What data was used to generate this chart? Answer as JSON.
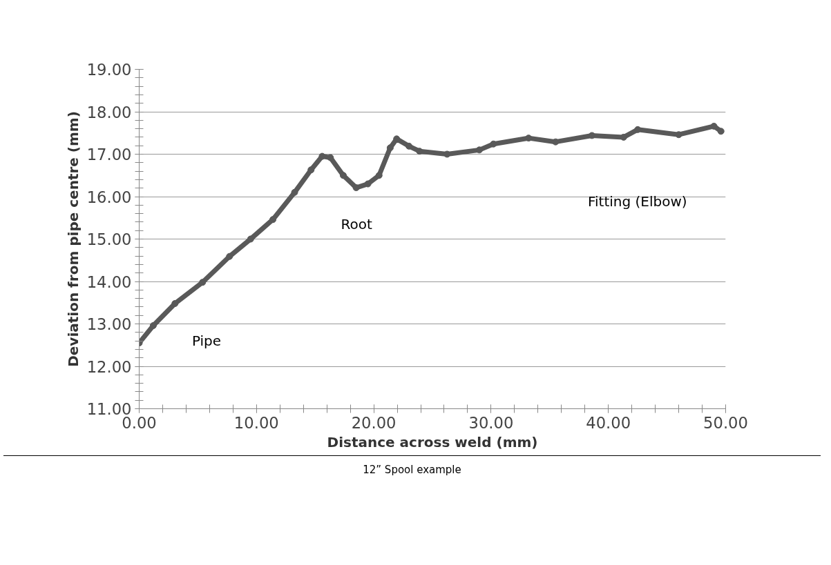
{
  "chart_data": {
    "type": "line",
    "xlabel": "Distance across weld (mm)",
    "ylabel": "Deviation from pipe centre (mm)",
    "x": [
      0.0,
      1.2,
      3.05,
      5.4,
      7.7,
      9.5,
      11.4,
      13.25,
      14.65,
      15.6,
      16.3,
      17.4,
      18.5,
      19.5,
      20.45,
      21.4,
      21.95,
      23.0,
      23.9,
      26.25,
      29.0,
      30.2,
      33.2,
      35.5,
      38.6,
      41.3,
      42.5,
      46.0,
      49.0,
      49.6
    ],
    "series": [
      {
        "color": "#595959",
        "values": [
          12.55,
          12.96,
          13.48,
          13.98,
          14.59,
          15.0,
          15.46,
          16.1,
          16.63,
          16.95,
          16.92,
          16.5,
          16.21,
          16.3,
          16.5,
          17.15,
          17.36,
          17.19,
          17.07,
          17.0,
          17.1,
          17.24,
          17.38,
          17.29,
          17.44,
          17.4,
          17.58,
          17.46,
          17.66,
          17.54
        ]
      }
    ],
    "xlim": [
      0,
      50
    ],
    "xticks": [
      {
        "value": 0,
        "label": "0.00"
      },
      {
        "value": 10,
        "label": "10.00"
      },
      {
        "value": 20,
        "label": "20.00"
      },
      {
        "value": 30,
        "label": "30.00"
      },
      {
        "value": 40,
        "label": "40.00"
      },
      {
        "value": 50,
        "label": "50.00"
      }
    ],
    "ylim": [
      11,
      19
    ],
    "yticks": [
      {
        "value": 11,
        "label": "11.00"
      },
      {
        "value": 12,
        "label": "12.00"
      },
      {
        "value": 13,
        "label": "13.00"
      },
      {
        "value": 14,
        "label": "14.00"
      },
      {
        "value": 15,
        "label": "15.00"
      },
      {
        "value": 16,
        "label": "16.00"
      },
      {
        "value": 17,
        "label": "17.00"
      },
      {
        "value": 18,
        "label": "18.00"
      },
      {
        "value": 19,
        "label": "19.00"
      }
    ],
    "grid": "y",
    "marker": "circle",
    "line_style": "solid",
    "annotations": [
      "Pipe",
      "Root",
      "Fitting (Elbow)",
      "12” Spool example"
    ]
  }
}
